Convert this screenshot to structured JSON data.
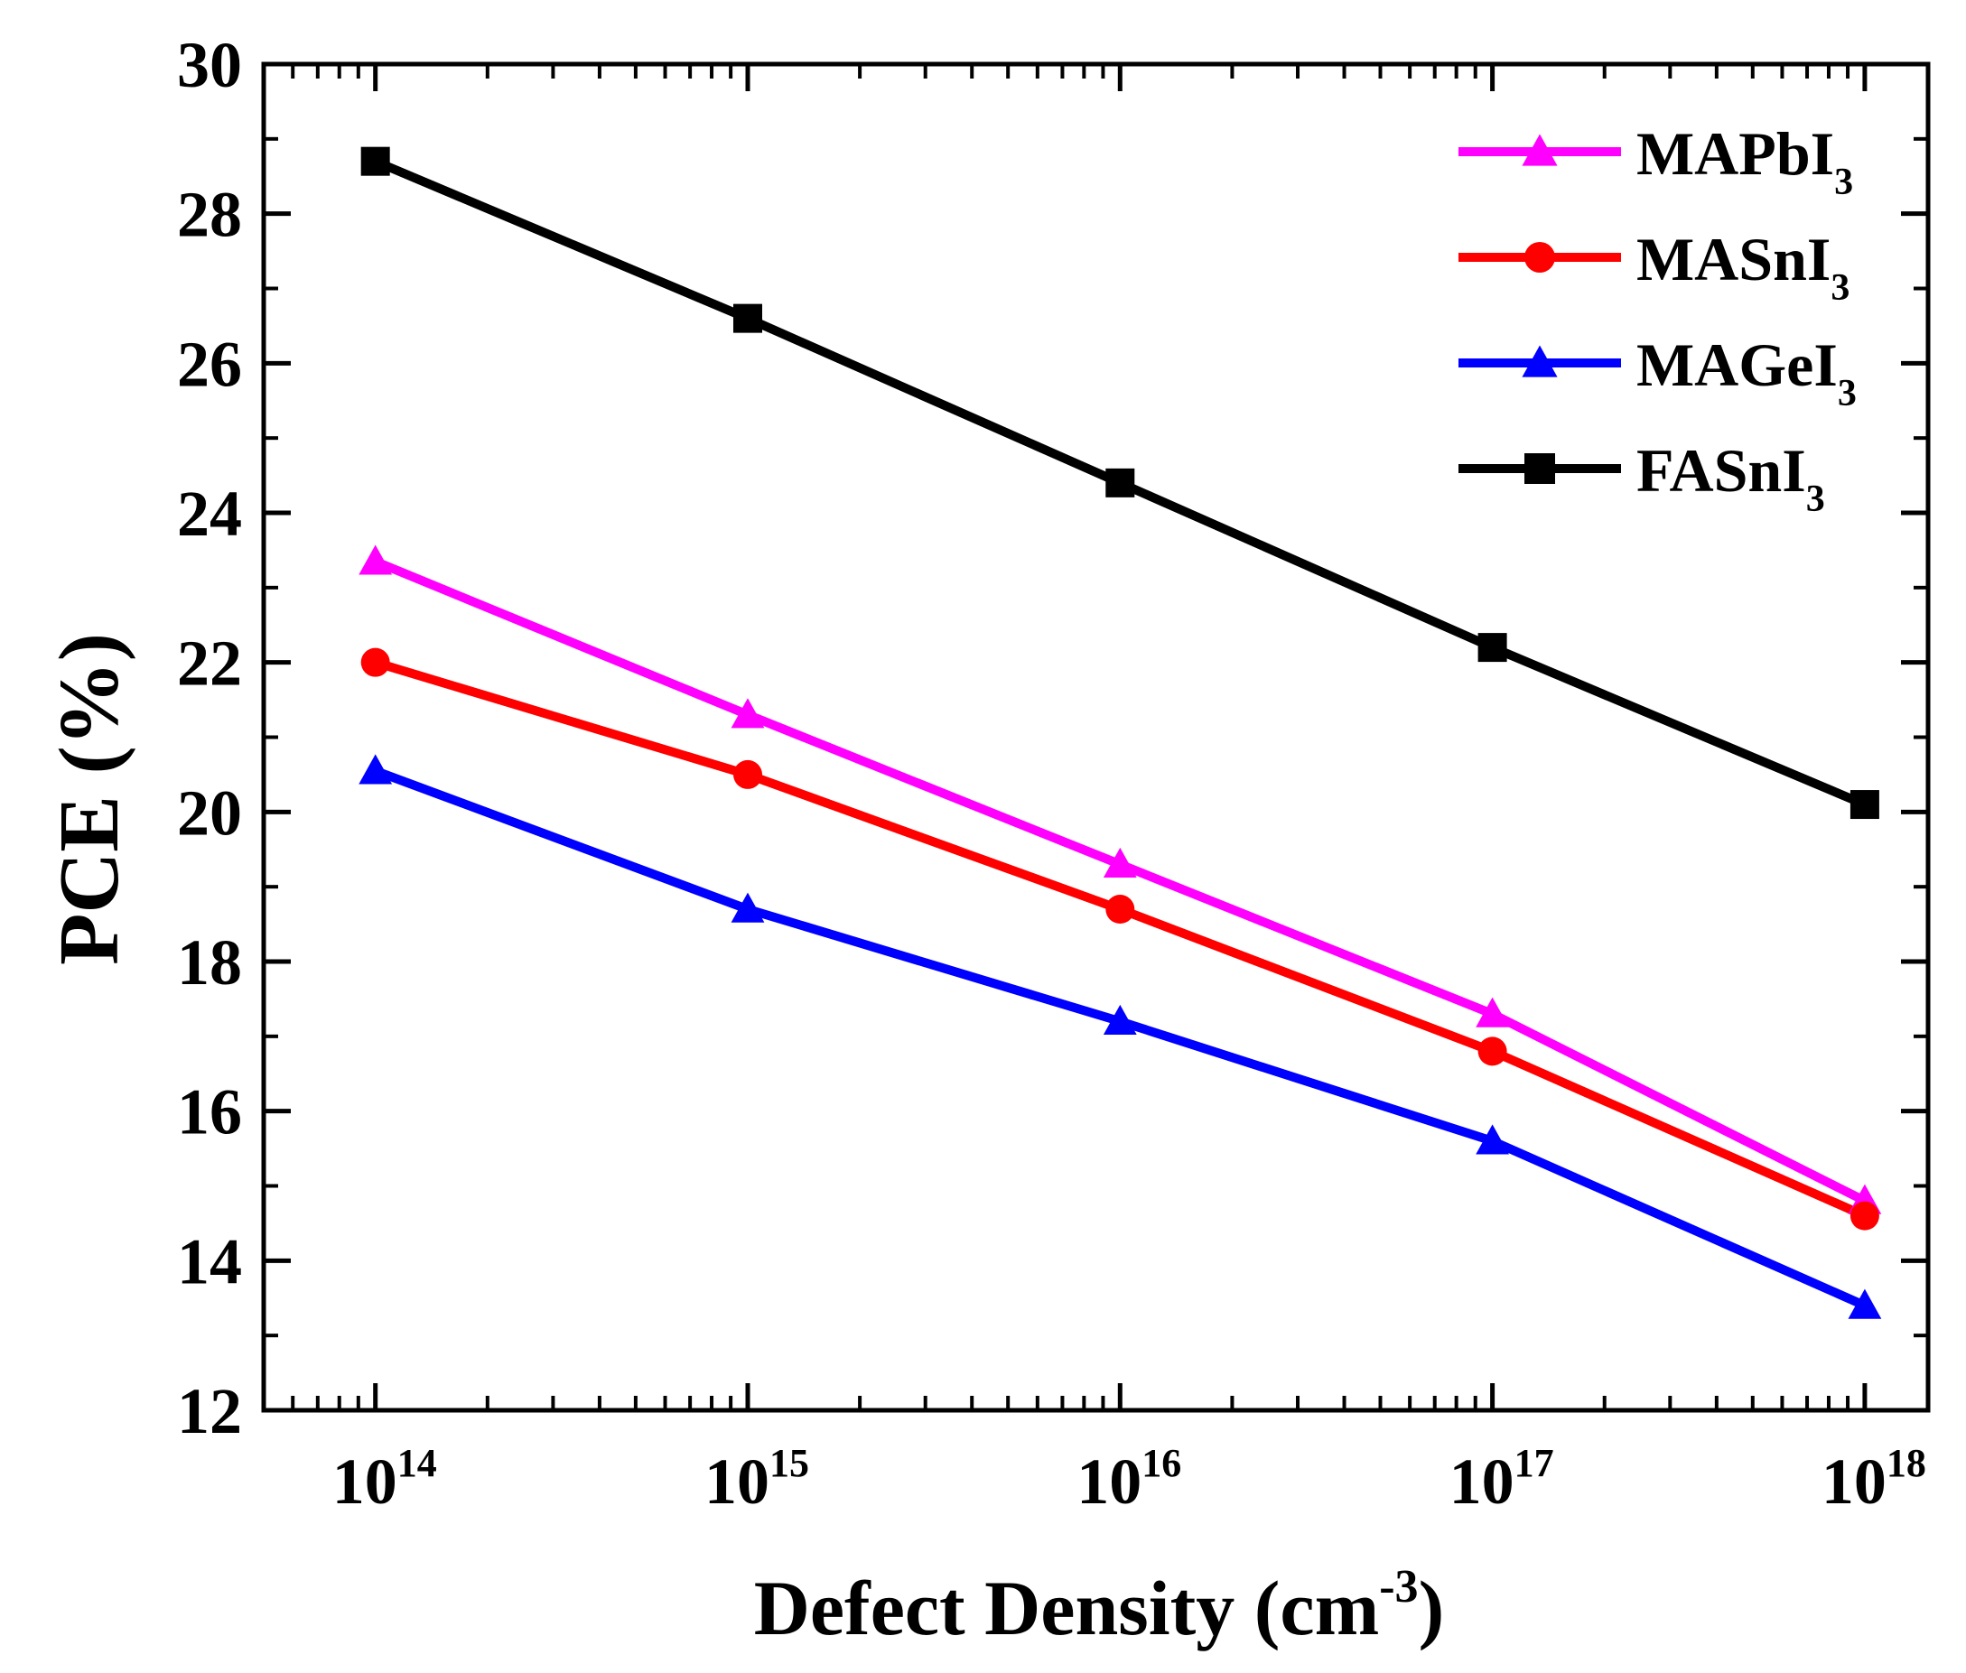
{
  "chart_data": {
    "type": "line",
    "x_scale": "log",
    "xlabel": {
      "main": "Defect Density (cm",
      "sup": "-3",
      "tail": ")"
    },
    "ylabel": "PCE (%)",
    "x": [
      100000000000000.0,
      1000000000000000.0,
      1e+16,
      1e+17,
      1e+18
    ],
    "x_ticks": [
      {
        "base": "10",
        "exp": "14"
      },
      {
        "base": "10",
        "exp": "15"
      },
      {
        "base": "10",
        "exp": "16"
      },
      {
        "base": "10",
        "exp": "17"
      },
      {
        "base": "10",
        "exp": "18"
      }
    ],
    "y_ticks": [
      "12",
      "14",
      "16",
      "18",
      "20",
      "22",
      "24",
      "26",
      "28",
      "30"
    ],
    "ylim": [
      12,
      30
    ],
    "legend_position": "top-right",
    "series": [
      {
        "name": "MAPbI",
        "sub": "3",
        "color": "#ff00ff",
        "marker": "triangle",
        "values": [
          23.35,
          21.3,
          19.3,
          17.3,
          14.8
        ]
      },
      {
        "name": "MASnI",
        "sub": "3",
        "color": "#ff0000",
        "marker": "circle",
        "values": [
          22.0,
          20.5,
          18.7,
          16.8,
          14.6
        ]
      },
      {
        "name": "MAGeI",
        "sub": "3",
        "color": "#0000ff",
        "marker": "triangle",
        "values": [
          20.55,
          18.7,
          17.2,
          15.6,
          13.4
        ]
      },
      {
        "name": "FASnI",
        "sub": "3",
        "color": "#000000",
        "marker": "square",
        "values": [
          28.7,
          26.6,
          24.4,
          22.2,
          20.1
        ]
      }
    ]
  }
}
